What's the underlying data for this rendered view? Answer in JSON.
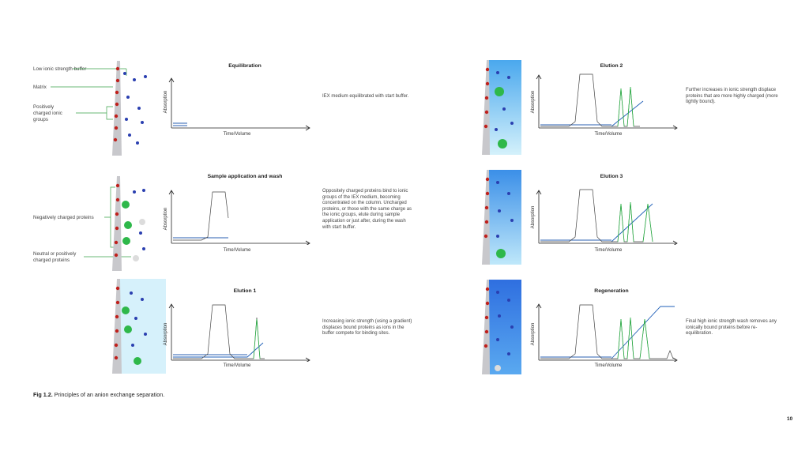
{
  "labels": {
    "low_ionic": "Low ionic strength buffer",
    "matrix": "Matrix",
    "pos_groups": [
      "Positively",
      "charged ionic",
      "groups"
    ],
    "neg_proteins": "Negatively charged proteins",
    "neutral": [
      "Neutral or positively",
      "charged proteins"
    ]
  },
  "panels": [
    {
      "title": "Equilibration",
      "desc": "IEX medium equilibrated with start buffer."
    },
    {
      "title": "Sample application and wash",
      "desc": "Oppositely charged proteins bind to ionic groups of the IEX medium, becoming concentrated on the column. Uncharged proteins, or those with the same charge as the ionic groups, elute during sample application or just after, during the wash with start buffer."
    },
    {
      "title": "Elution 1",
      "desc": "Increasing ionic strength (using a gradient) displaces bound proteins as ions in the buffer compete for binding sites."
    },
    {
      "title": "Elution 2",
      "desc": "Further increases in ionic strength displace proteins that are more highly charged (more tightly bound)."
    },
    {
      "title": "Elution 3",
      "desc": ""
    },
    {
      "title": "Regeneration",
      "desc": "Final high ionic strength wash removes any ionically bound proteins before re-equilibration."
    }
  ],
  "axes": {
    "y": "Absorption",
    "x": "Time/Volume"
  },
  "caption": {
    "fig": "Fig 1.2.",
    "text": " Principles of an anion exchange separation."
  },
  "page_number": "10",
  "colors": {
    "gradient_line": "#1f5fb8",
    "baseline": "#2a5fb0",
    "protein_peak": "#2eb84a",
    "column_light": "#c9ecfb",
    "column_dark": "#2f6fe0",
    "pos_group": "#c0201c",
    "neg_ion": "#2a3fb0"
  }
}
